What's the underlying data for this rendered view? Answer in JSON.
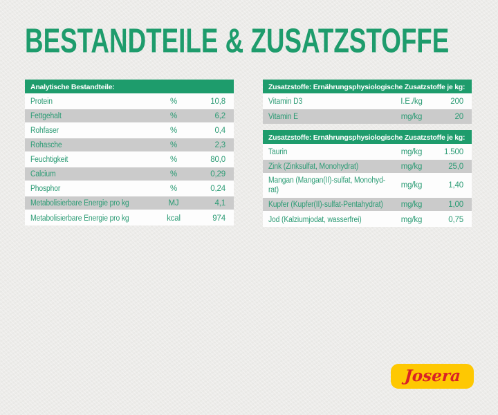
{
  "title": "BESTANDTEILE & ZUSATZSTOFFE",
  "colors": {
    "green": "#1e9c6c",
    "text_green": "#2b9b74",
    "row_gray": "#cbcbcb",
    "row_white": "#fdfdfd",
    "background": "#edecea",
    "logo_yellow": "#fec802",
    "logo_red": "#d92127"
  },
  "left_table": {
    "header": "Analytische Bestandteile:",
    "rows": [
      {
        "label": "Protein",
        "unit": "%",
        "value": "10,8"
      },
      {
        "label": "Fettgehalt",
        "unit": "%",
        "value": "6,2"
      },
      {
        "label": "Rohfaser",
        "unit": "%",
        "value": "0,4"
      },
      {
        "label": "Rohasche",
        "unit": "%",
        "value": "2,3"
      },
      {
        "label": "Feuchtigkeit",
        "unit": "%",
        "value": "80,0"
      },
      {
        "label": "Calcium",
        "unit": "%",
        "value": "0,29"
      },
      {
        "label": "Phosphor",
        "unit": "%",
        "value": "0,24"
      },
      {
        "label": "Metabolisierbare Energie pro kg",
        "unit": "MJ",
        "value": "4,1"
      },
      {
        "label": "Metabolisierbare Energie pro kg",
        "unit": "kcal",
        "value": "974"
      }
    ]
  },
  "right_tables": [
    {
      "header": "Zusatzstoffe: Ernährungsphysiologische Zusatzstoffe je kg:",
      "rows": [
        {
          "label": "Vitamin D3",
          "unit": "I.E./kg",
          "value": "200"
        },
        {
          "label": "Vitamin E",
          "unit": "mg/kg",
          "value": "20"
        }
      ]
    },
    {
      "header": "Zusatzstoffe: Ernährungsphysiologische Zusatzstoffe je kg:",
      "rows": [
        {
          "label": "Taurin",
          "unit": "mg/kg",
          "value": "1.500"
        },
        {
          "label": "Zink (Zinksulfat, Monohydrat)",
          "unit": "mg/kg",
          "value": "25,0"
        },
        {
          "label": "Mangan (Mangan(II)-sulfat, Monohyd-\nrat)",
          "unit": "mg/kg",
          "value": "1,40"
        },
        {
          "label": "Kupfer (Kupfer(II)-sulfat-Pentahydrat)",
          "unit": "mg/kg",
          "value": "1,00"
        },
        {
          "label": "Jod (Kalziumjodat, wasserfrei)",
          "unit": "mg/kg",
          "value": "0,75"
        }
      ]
    }
  ],
  "logo": {
    "text": "Josera"
  }
}
